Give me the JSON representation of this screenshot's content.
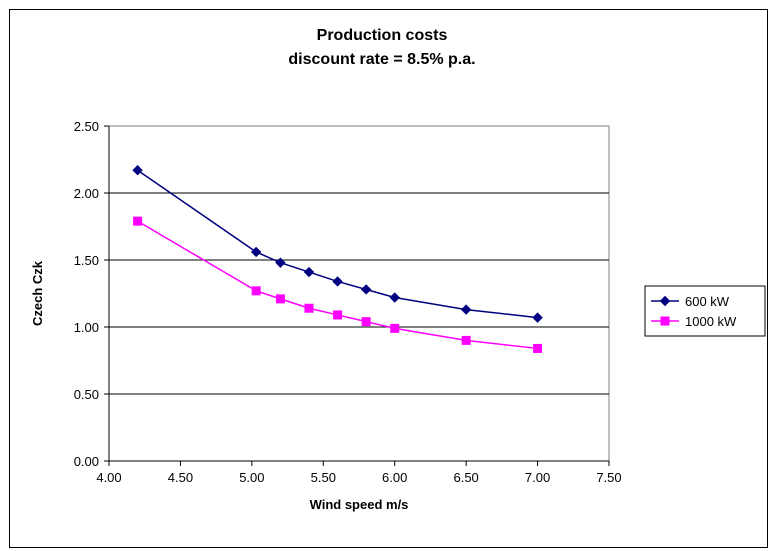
{
  "chart_data": {
    "type": "line",
    "title": [
      "Production costs",
      "discount rate = 8.5% p.a."
    ],
    "xlabel": "Wind speed m/s",
    "ylabel": "Czech Czk",
    "xlim": [
      4.0,
      7.5
    ],
    "ylim": [
      0.0,
      2.5
    ],
    "xticks": [
      "4.00",
      "4.50",
      "5.00",
      "5.50",
      "6.00",
      "6.50",
      "7.00",
      "7.50"
    ],
    "yticks": [
      "0.00",
      "0.50",
      "1.00",
      "1.50",
      "2.00",
      "2.50"
    ],
    "grid": "horizontal",
    "legend_position": "right",
    "series": [
      {
        "name": "600 kW",
        "color": "#000080",
        "marker": "diamond",
        "x": [
          4.2,
          5.03,
          5.2,
          5.4,
          5.6,
          5.8,
          6.0,
          6.5,
          7.0
        ],
        "y": [
          2.17,
          1.56,
          1.48,
          1.41,
          1.34,
          1.28,
          1.22,
          1.13,
          1.07
        ]
      },
      {
        "name": "1000 kW",
        "color": "#ff00ff",
        "marker": "square",
        "x": [
          4.2,
          5.03,
          5.2,
          5.4,
          5.6,
          5.8,
          6.0,
          6.5,
          7.0
        ],
        "y": [
          1.79,
          1.27,
          1.21,
          1.14,
          1.09,
          1.04,
          0.99,
          0.9,
          0.84
        ]
      }
    ]
  }
}
